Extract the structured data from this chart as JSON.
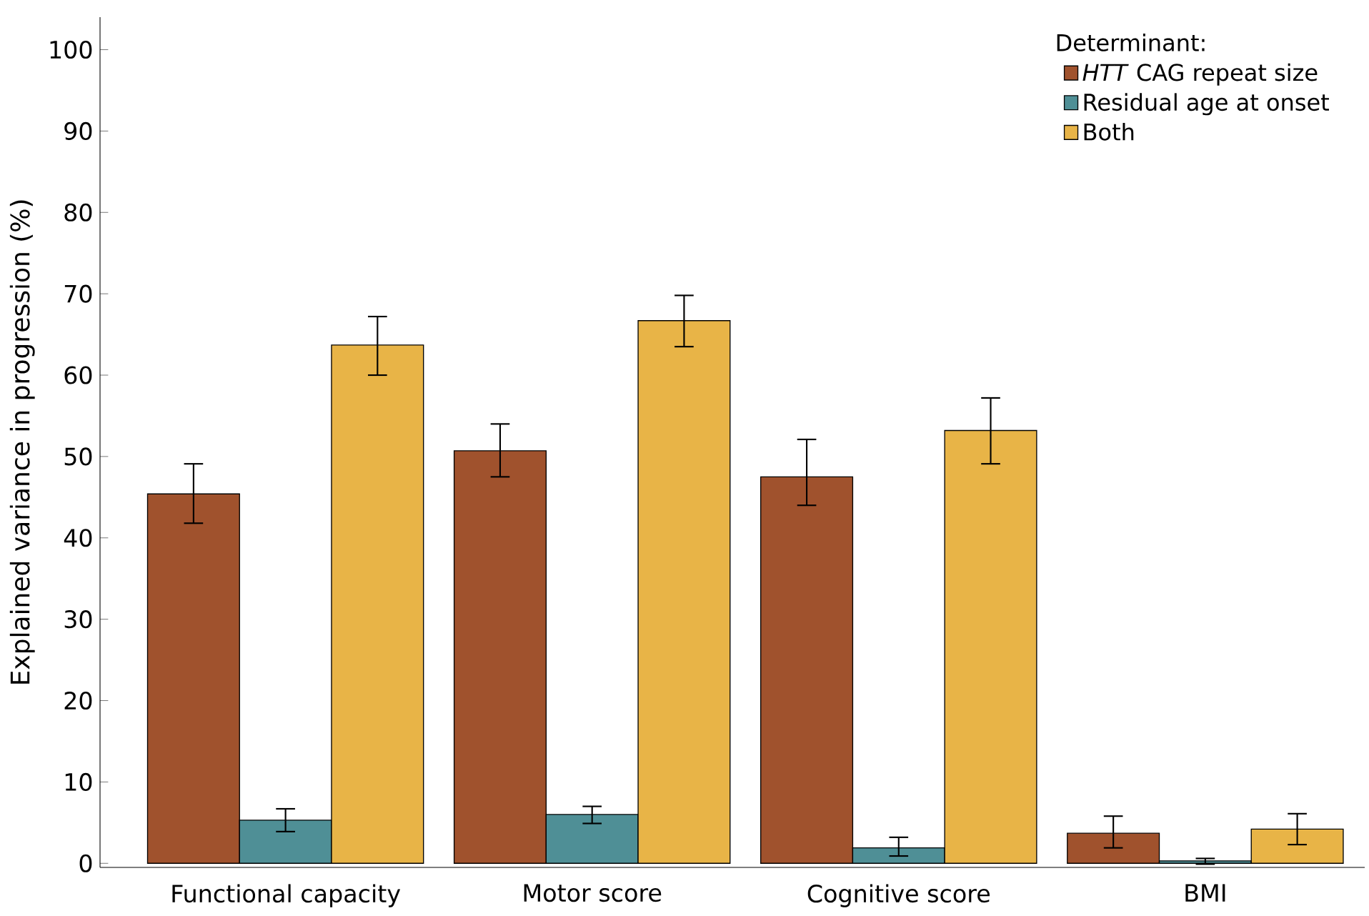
{
  "chart_data": {
    "type": "bar",
    "ylabel": "Explained variance in progression (%)",
    "categories": [
      "Functional capacity",
      "Motor score",
      "Cognitive score",
      "BMI"
    ],
    "legend_title": "Determinant:",
    "series": [
      {
        "name": "*HTT* CAG repeat size",
        "color": "#a0522d",
        "values": [
          45.4,
          50.7,
          47.5,
          3.7
        ],
        "errors": [
          [
            41.8,
            49.1
          ],
          [
            47.5,
            54.0
          ],
          [
            44.0,
            52.1
          ],
          [
            1.9,
            5.8
          ]
        ]
      },
      {
        "name": "Residual age at onset",
        "color": "#4f8f96",
        "values": [
          5.3,
          6.0,
          1.9,
          0.3
        ],
        "errors": [
          [
            3.9,
            6.7
          ],
          [
            4.9,
            7.0
          ],
          [
            0.9,
            3.2
          ],
          [
            -0.1,
            0.6
          ]
        ]
      },
      {
        "name": "Both",
        "color": "#e8b447",
        "values": [
          63.7,
          66.7,
          53.2,
          4.2
        ],
        "errors": [
          [
            60.0,
            67.2
          ],
          [
            63.5,
            69.8
          ],
          [
            49.1,
            57.2
          ],
          [
            2.3,
            6.1
          ]
        ]
      }
    ],
    "ylim": [
      -0.5,
      104
    ],
    "yticks": [
      0,
      10,
      20,
      30,
      40,
      50,
      60,
      70,
      80,
      90,
      100
    ],
    "grid": false,
    "legend": "top right"
  }
}
